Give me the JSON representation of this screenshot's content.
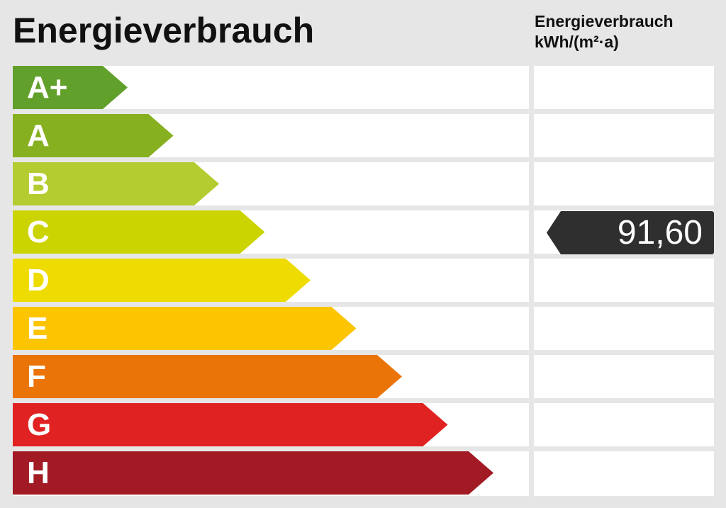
{
  "title": "Energieverbrauch",
  "unit_line1": "Energieverbrauch",
  "unit_line2": "kWh/(m²·a)",
  "classes": [
    {
      "label": "A+",
      "color": "#62a02c"
    },
    {
      "label": "A",
      "color": "#86b01f"
    },
    {
      "label": "B",
      "color": "#b5cc30"
    },
    {
      "label": "C",
      "color": "#cbd400"
    },
    {
      "label": "D",
      "color": "#eedc00"
    },
    {
      "label": "E",
      "color": "#fdc500"
    },
    {
      "label": "F",
      "color": "#ea7408"
    },
    {
      "label": "G",
      "color": "#e12222"
    },
    {
      "label": "H",
      "color": "#a21a24"
    }
  ],
  "value": {
    "text": "91,60",
    "class": "C",
    "marker_color": "#2f2f2f"
  }
}
